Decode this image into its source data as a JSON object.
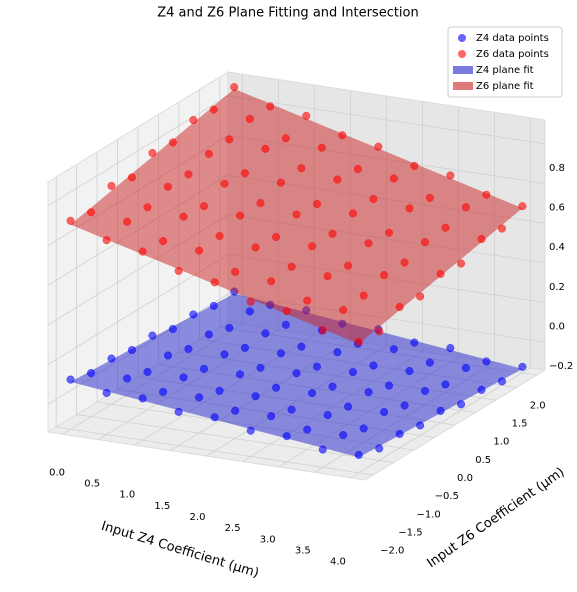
{
  "chart_data": {
    "type": "scatter3d",
    "title": "Z4 and Z6 Plane Fitting and Intersection",
    "xlabel": "Input Z4 Coefficient (μm)",
    "ylabel": "Input Z6 Coefficient (μm)",
    "x": [
      0,
      0.5,
      1,
      1.5,
      2,
      2.5,
      3,
      3.5,
      4
    ],
    "y": [
      -2,
      -1.5,
      -1,
      -0.5,
      0,
      0.5,
      1,
      1.5,
      2
    ],
    "xlim": [
      -0.2,
      4.2
    ],
    "ylim": [
      -2.2,
      2.2
    ],
    "zlim": [
      -0.34,
      0.92
    ],
    "xticks": [
      {
        "value": 0,
        "label": "0.0"
      },
      {
        "value": 0.5,
        "label": "0.5"
      },
      {
        "value": 1,
        "label": "1.0"
      },
      {
        "value": 1.5,
        "label": "1.5"
      },
      {
        "value": 2,
        "label": "2.0"
      },
      {
        "value": 2.5,
        "label": "2.5"
      },
      {
        "value": 3,
        "label": "3.0"
      },
      {
        "value": 3.5,
        "label": "3.5"
      },
      {
        "value": 4,
        "label": "4.0"
      }
    ],
    "yticks": [
      {
        "value": -2,
        "label": "−2.0"
      },
      {
        "value": -1.5,
        "label": "−1.5"
      },
      {
        "value": -1,
        "label": "−1.0"
      },
      {
        "value": -0.5,
        "label": "−0.5"
      },
      {
        "value": 0,
        "label": "0.0"
      },
      {
        "value": 0.5,
        "label": "0.5"
      },
      {
        "value": 1,
        "label": "1.0"
      },
      {
        "value": 1.5,
        "label": "1.5"
      },
      {
        "value": 2,
        "label": "2.0"
      }
    ],
    "zticks": [
      {
        "value": -0.2,
        "label": "−0.2"
      },
      {
        "value": 0,
        "label": "0.0"
      },
      {
        "value": 0.2,
        "label": "0.2"
      },
      {
        "value": 0.4,
        "label": "0.4"
      },
      {
        "value": 0.6,
        "label": "0.6"
      },
      {
        "value": 0.8,
        "label": "0.8"
      }
    ],
    "grid": true,
    "legend": "upper right",
    "series": [
      {
        "name": "Z4 data points",
        "color": "#0000ff",
        "z": [
          [
            -0.09,
            -0.12,
            -0.11,
            -0.13,
            -0.12,
            -0.15,
            -0.14,
            -0.16,
            -0.15
          ],
          [
            -0.13,
            -0.12,
            -0.15,
            -0.13,
            -0.16,
            -0.15,
            -0.18,
            -0.16,
            -0.19
          ],
          [
            -0.13,
            -0.16,
            -0.15,
            -0.17,
            -0.16,
            -0.19,
            -0.18,
            -0.2,
            -0.19
          ],
          [
            -0.17,
            -0.16,
            -0.19,
            -0.17,
            -0.2,
            -0.19,
            -0.22,
            -0.2,
            -0.23
          ],
          [
            -0.17,
            -0.2,
            -0.19,
            -0.21,
            -0.2,
            -0.23,
            -0.22,
            -0.24,
            -0.23
          ],
          [
            -0.21,
            -0.2,
            -0.23,
            -0.21,
            -0.24,
            -0.23,
            -0.26,
            -0.24,
            -0.27
          ],
          [
            -0.21,
            -0.24,
            -0.23,
            -0.25,
            -0.24,
            -0.27,
            -0.26,
            -0.28,
            -0.27
          ],
          [
            -0.25,
            -0.24,
            -0.27,
            -0.25,
            -0.28,
            -0.27,
            -0.3,
            -0.28,
            -0.31
          ],
          [
            -0.25,
            -0.28,
            -0.27,
            -0.29,
            -0.28,
            -0.31,
            -0.3,
            -0.32,
            -0.31
          ]
        ]
      },
      {
        "name": "Z6 data points",
        "color": "#ff0000",
        "z": [
          [
            0.71,
            0.69,
            0.76,
            0.74,
            0.8,
            0.79,
            0.84,
            0.83,
            0.88
          ],
          [
            0.64,
            0.67,
            0.68,
            0.72,
            0.72,
            0.76,
            0.77,
            0.81,
            0.81
          ],
          [
            0.61,
            0.6,
            0.66,
            0.65,
            0.7,
            0.69,
            0.75,
            0.74,
            0.79
          ],
          [
            0.54,
            0.58,
            0.59,
            0.63,
            0.63,
            0.67,
            0.68,
            0.72,
            0.72
          ],
          [
            0.51,
            0.5,
            0.56,
            0.55,
            0.6,
            0.59,
            0.65,
            0.64,
            0.69
          ],
          [
            0.44,
            0.48,
            0.49,
            0.53,
            0.53,
            0.57,
            0.58,
            0.62,
            0.62
          ],
          [
            0.42,
            0.41,
            0.47,
            0.46,
            0.51,
            0.5,
            0.56,
            0.55,
            0.6
          ],
          [
            0.35,
            0.39,
            0.4,
            0.44,
            0.44,
            0.48,
            0.49,
            0.53,
            0.53
          ],
          [
            0.32,
            0.31,
            0.37,
            0.36,
            0.41,
            0.4,
            0.46,
            0.45,
            0.5
          ]
        ]
      }
    ],
    "surfaces": [
      {
        "name": "Z4 plane fit",
        "color": "#2222cc"
      },
      {
        "name": "Z6 plane fit",
        "color": "#cc2222"
      }
    ]
  }
}
